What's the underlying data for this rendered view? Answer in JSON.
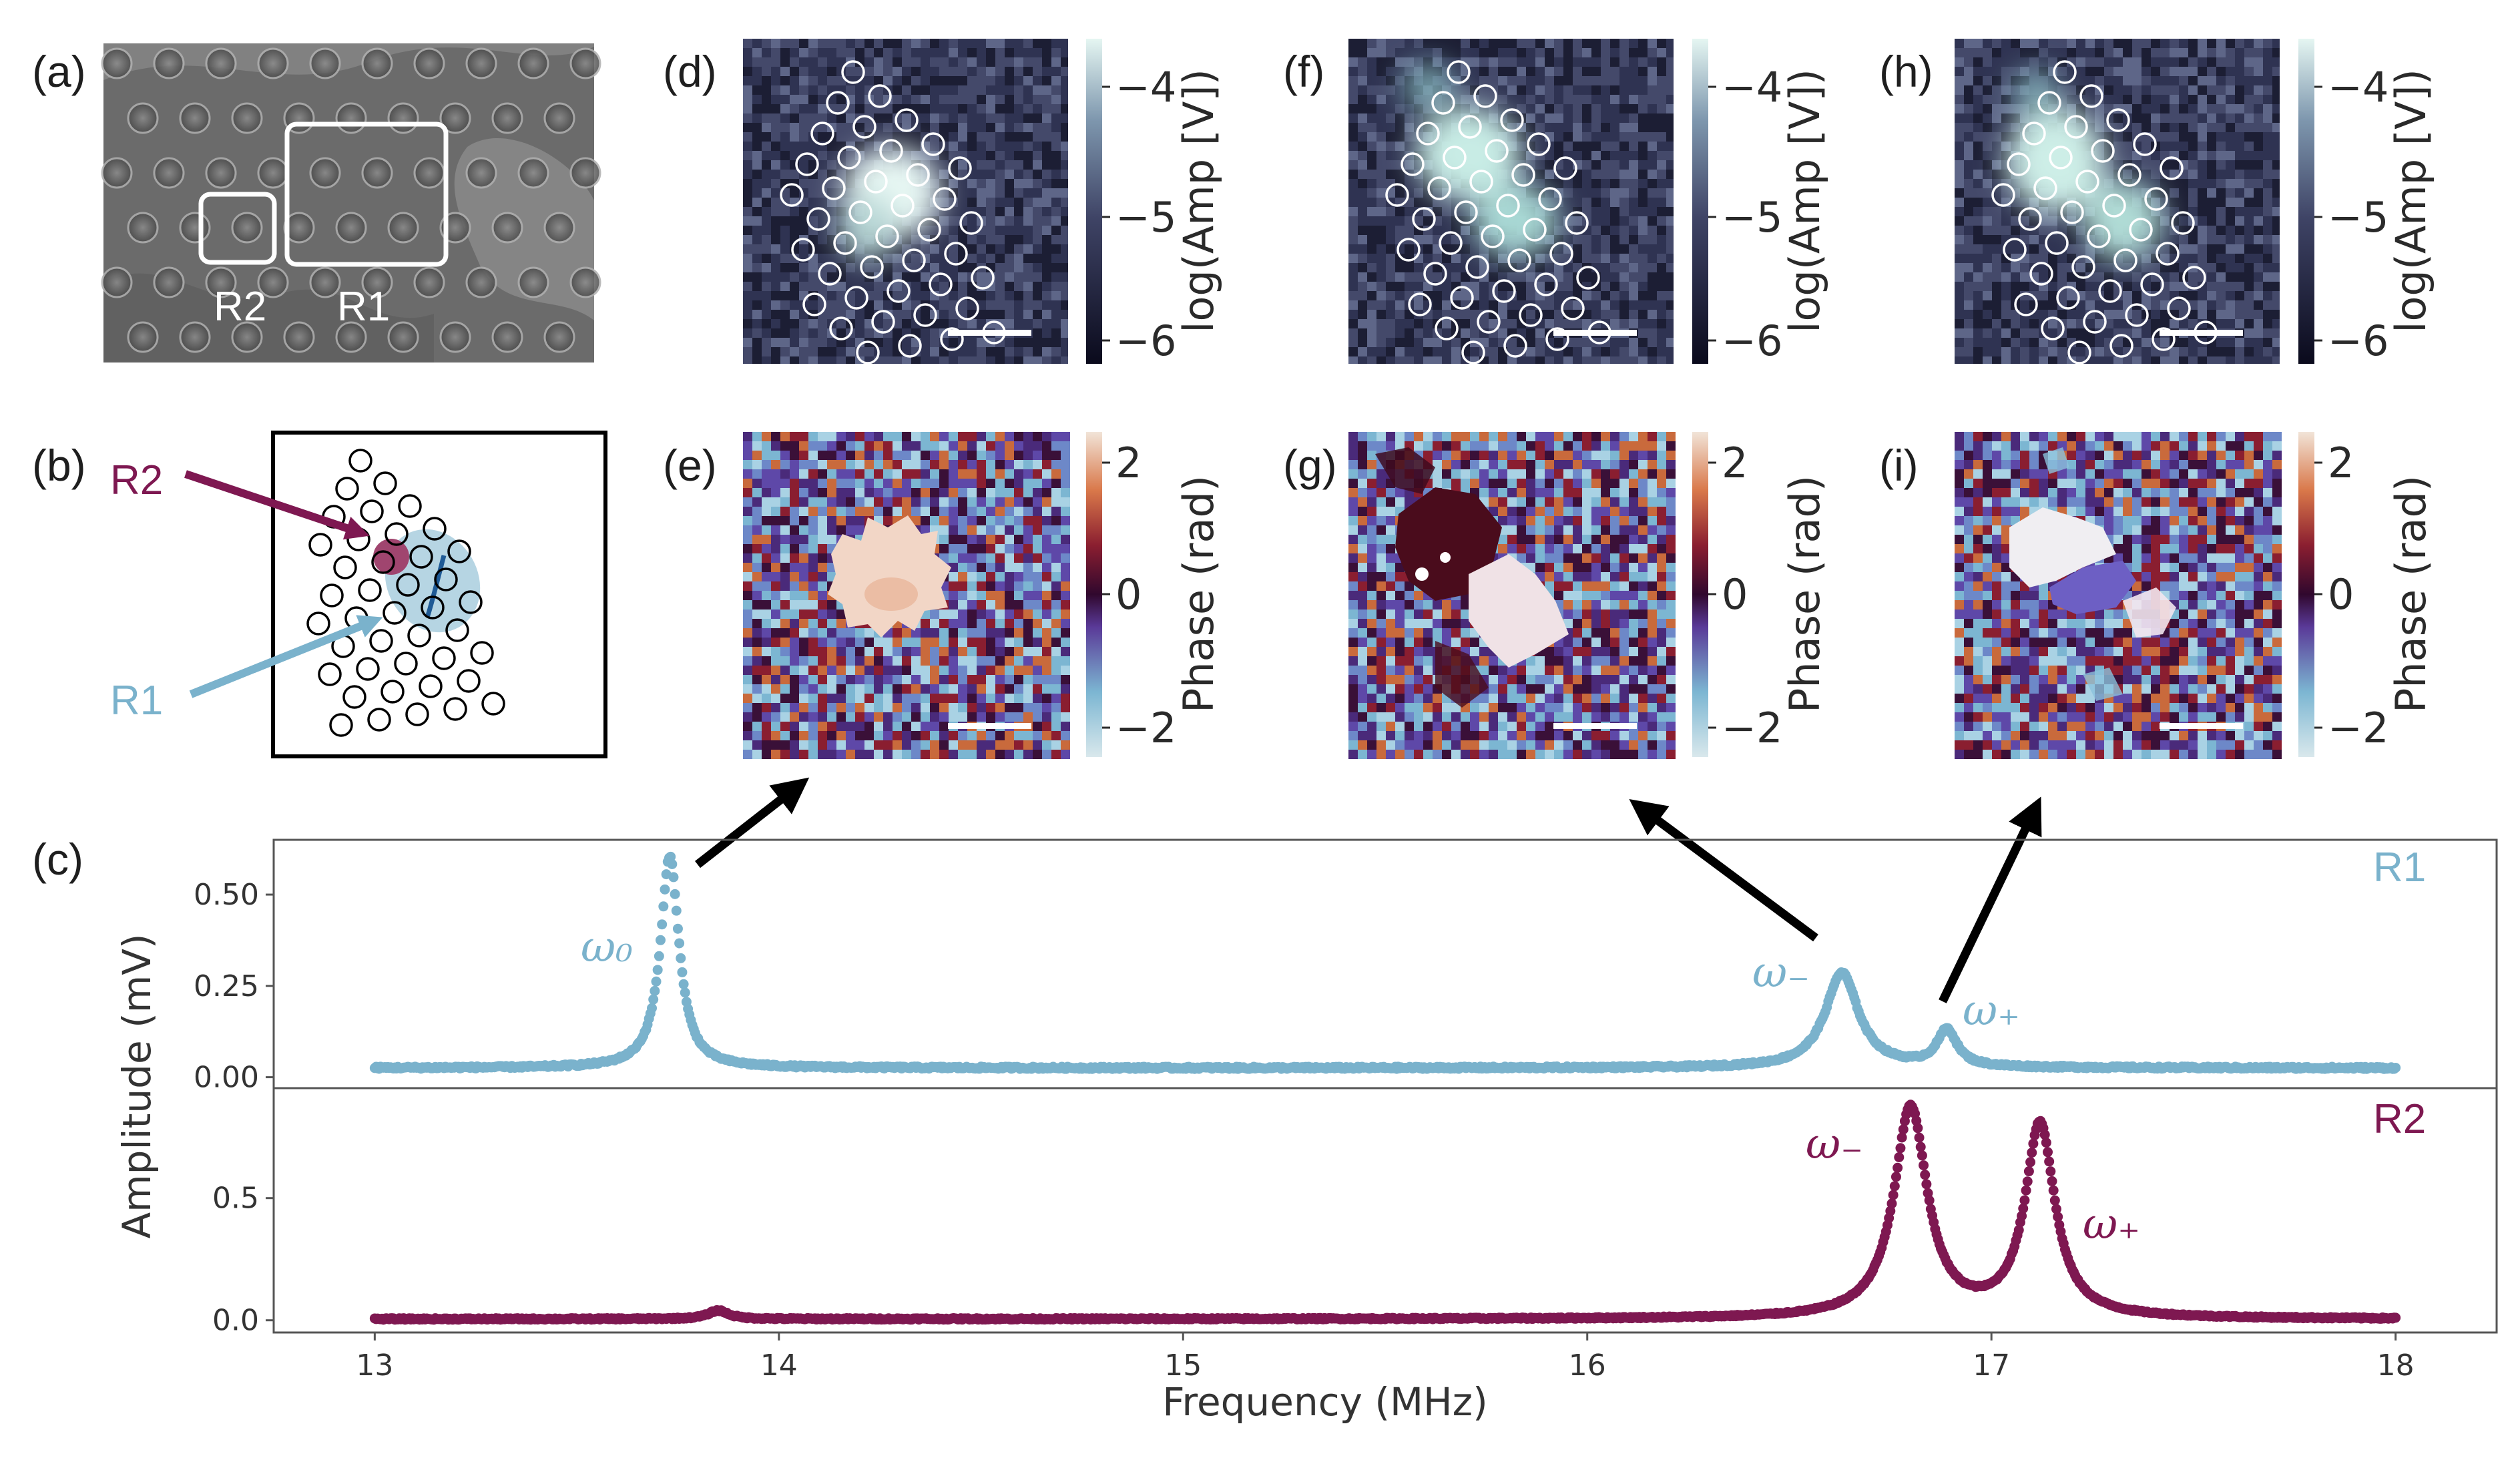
{
  "panel_labels": {
    "a": "(a)",
    "b": "(b)",
    "c": "(c)",
    "d": "(d)",
    "e": "(e)",
    "f": "(f)",
    "g": "(g)",
    "h": "(h)",
    "i": "(i)"
  },
  "sem": {
    "region_r1": "R1",
    "region_r2": "R2"
  },
  "schematic": {
    "r2_label": "R2",
    "r1_label": "R1"
  },
  "maps": {
    "amp_colorbar_label": "log(Amp [V])",
    "amp_ticks": [
      "−4",
      "−5",
      "−6"
    ],
    "phase_colorbar_label": "Phase (rad)",
    "phase_ticks": [
      "2",
      "0",
      "−2"
    ]
  },
  "colors": {
    "r1": "#7ab2cc",
    "r2": "#7e1851",
    "amp_low": "#0a0a1c",
    "amp_mid": "#4a5072",
    "amp_high": "#dff3ef",
    "phase_pos": "#c96a3c",
    "phase_zero": "#3a1038",
    "phase_neg": "#7cb6d2"
  },
  "icons": {
    "arrows": "arrow-icon"
  },
  "chart_data": {
    "type": "scatter",
    "xlabel": "Frequency (MHz)",
    "ylabel": "Amplitude (mV)",
    "xlim": [
      12.75,
      18.25
    ],
    "xticks": [
      "13",
      "14",
      "15",
      "16",
      "17",
      "18"
    ],
    "panels": [
      {
        "name": "R1",
        "ylim": [
          -0.03,
          0.65
        ],
        "yticks": [
          "0.00",
          "0.25",
          "0.50"
        ],
        "series": [
          {
            "name": "R1",
            "x_start": 13.0,
            "x_end": 18.0,
            "baseline": 0.025,
            "peaks": [
              {
                "f": 13.73,
                "amp": 0.58,
                "width": 0.028
              },
              {
                "f": 16.63,
                "amp": 0.26,
                "width": 0.05
              },
              {
                "f": 16.89,
                "amp": 0.1,
                "width": 0.03
              }
            ]
          }
        ],
        "annotations": [
          "ω₀",
          "ω₋",
          "ω₊"
        ]
      },
      {
        "name": "R2",
        "ylim": [
          -0.05,
          0.95
        ],
        "yticks": [
          "0.0",
          "0.5"
        ],
        "series": [
          {
            "name": "R2",
            "x_start": 13.0,
            "x_end": 18.0,
            "baseline": 0.005,
            "peaks": [
              {
                "f": 13.85,
                "amp": 0.035,
                "width": 0.03
              },
              {
                "f": 16.8,
                "amp": 0.86,
                "width": 0.05
              },
              {
                "f": 17.12,
                "amp": 0.79,
                "width": 0.045
              }
            ]
          }
        ],
        "annotations": [
          "ω₋",
          "ω₊"
        ]
      }
    ]
  }
}
